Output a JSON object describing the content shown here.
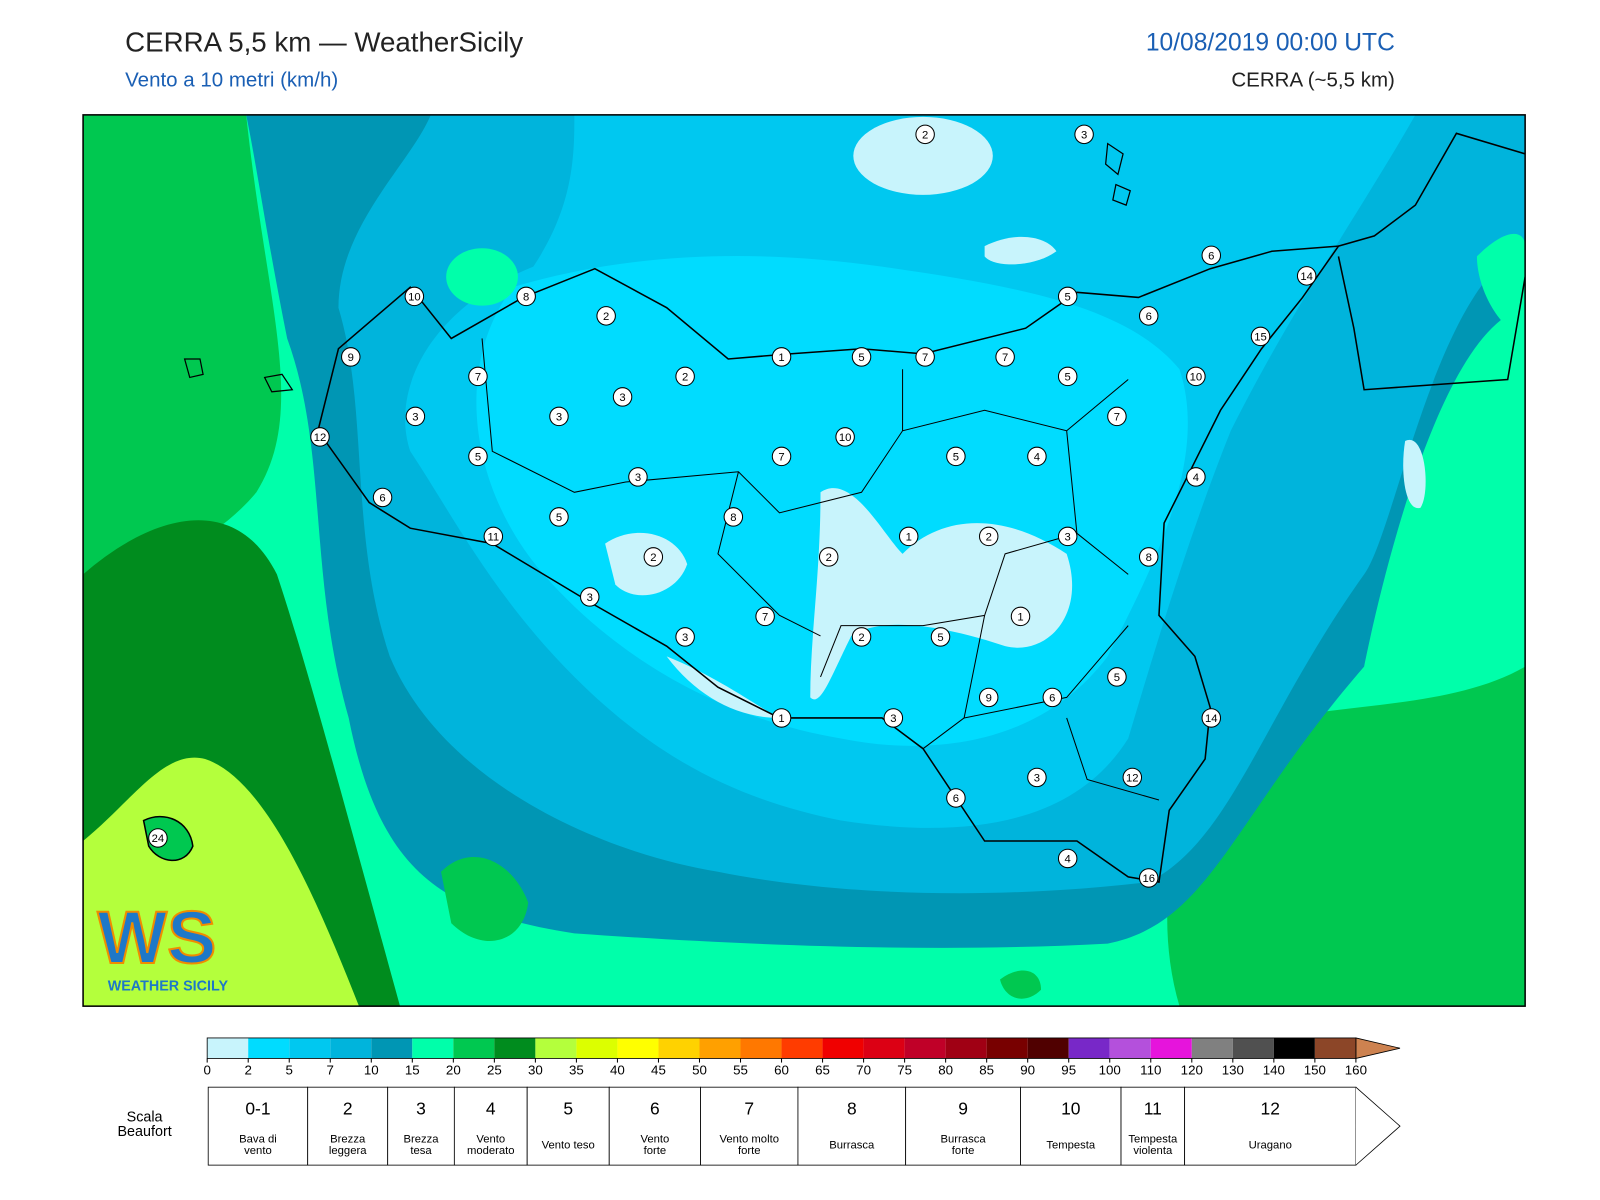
{
  "header": {
    "title": "CERRA 5,5 km — WeatherSicily",
    "subtitle": "Vento a 10 metri (km/h)",
    "datetime": "10/08/2019 00:00 UTC",
    "model": "CERRA (~5,5 km)"
  },
  "stations": [
    2,
    3,
    6,
    14,
    10,
    8,
    2,
    5,
    6,
    15,
    9,
    1,
    5,
    7,
    7,
    7,
    2,
    5,
    10,
    3,
    3,
    3,
    7,
    12,
    10,
    5,
    7,
    5,
    4,
    3,
    4,
    6,
    5,
    8,
    1,
    2,
    3,
    11,
    2,
    2,
    8,
    3,
    1,
    7,
    3,
    2,
    5,
    5,
    9,
    6,
    1,
    3,
    14,
    3,
    12,
    6,
    24,
    4,
    16
  ],
  "logo": {
    "mark": "WS",
    "name": "WEATHER SICILY"
  },
  "colorbar": {
    "ticks": [
      0,
      2,
      5,
      7,
      10,
      15,
      20,
      25,
      30,
      35,
      40,
      45,
      50,
      55,
      60,
      65,
      70,
      75,
      80,
      85,
      90,
      95,
      100,
      110,
      120,
      130,
      140,
      150,
      160
    ],
    "colors": [
      "#c8f4fc",
      "#00dcff",
      "#00c8f0",
      "#00b4dc",
      "#0096b4",
      "#00ffaa",
      "#00c850",
      "#008c1e",
      "#b4ff3c",
      "#dcff00",
      "#ffff00",
      "#ffd200",
      "#ffa000",
      "#ff7800",
      "#ff3c00",
      "#f00000",
      "#dc0014",
      "#c00028",
      "#a00014",
      "#780000",
      "#500000",
      "#7828c8",
      "#b450dc",
      "#e614dc",
      "#808080",
      "#505050",
      "#000000",
      "#8c4628",
      "#cd8250"
    ]
  },
  "beaufort": {
    "title": [
      "Scala",
      "Beaufort"
    ],
    "classes": [
      {
        "force": "0-1",
        "name": [
          "Bava di",
          "vento"
        ]
      },
      {
        "force": 2,
        "name": [
          "Brezza",
          "leggera"
        ]
      },
      {
        "force": 3,
        "name": [
          "Brezza",
          "tesa"
        ]
      },
      {
        "force": 4,
        "name": [
          "Vento",
          "moderato"
        ]
      },
      {
        "force": 5,
        "name": [
          "Vento teso"
        ]
      },
      {
        "force": 6,
        "name": [
          "Vento",
          "forte"
        ]
      },
      {
        "force": 7,
        "name": [
          "Vento molto",
          "forte"
        ]
      },
      {
        "force": 8,
        "name": [
          "Burrasca"
        ]
      },
      {
        "force": 9,
        "name": [
          "Burrasca",
          "forte"
        ]
      },
      {
        "force": 10,
        "name": [
          "Tempesta"
        ]
      },
      {
        "force": 11,
        "name": [
          "Tempesta",
          "violenta"
        ]
      },
      {
        "force": 12,
        "name": [
          "Uragano"
        ]
      }
    ]
  }
}
